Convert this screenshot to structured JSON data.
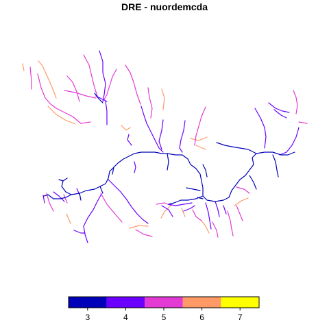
{
  "title": "DRE - nuordemcda",
  "legend": {
    "bins": [
      {
        "label": "3",
        "color": "#0000B8"
      },
      {
        "label": "4",
        "color": "#6B00FF"
      },
      {
        "label": "5",
        "color": "#E23AD3"
      },
      {
        "label": "6",
        "color": "#FF9966"
      },
      {
        "label": "7",
        "color": "#FFFF00"
      }
    ]
  }
}
